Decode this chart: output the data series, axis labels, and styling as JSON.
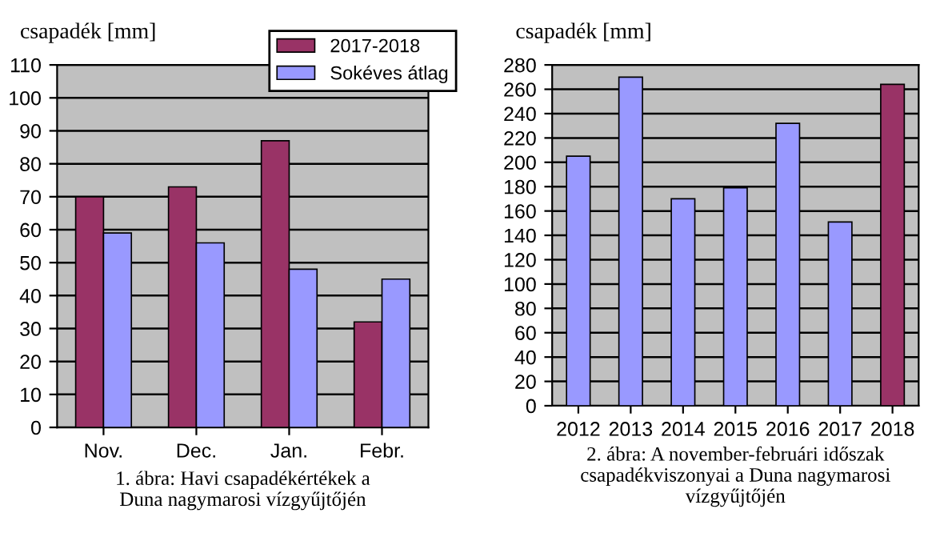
{
  "chart_data": [
    {
      "type": "bar",
      "title": "csapadék [mm]",
      "categories": [
        "Nov.",
        "Dec.",
        "Jan.",
        "Febr."
      ],
      "series": [
        {
          "name": "2017-2018",
          "color": "#993366",
          "values": [
            70,
            73,
            87,
            32
          ]
        },
        {
          "name": "Sokéves átlag",
          "color": "#9999ff",
          "values": [
            59,
            56,
            48,
            45
          ]
        }
      ],
      "ylim": [
        0,
        110
      ],
      "yticks": [
        0,
        10,
        20,
        30,
        40,
        50,
        60,
        70,
        80,
        90,
        100,
        110
      ],
      "grid": "y",
      "legend": "top right",
      "annotations": [
        "1. ábra: Havi csapadékértékek a\nDuna nagymarosi vízgyűjtőjén"
      ]
    },
    {
      "type": "bar",
      "title": "csapadék [mm]",
      "categories": [
        "2012",
        "2013",
        "2014",
        "2015",
        "2016",
        "2017",
        "2018"
      ],
      "values": [
        205,
        270,
        170,
        179,
        232,
        151,
        264
      ],
      "colors": [
        "#9999ff",
        "#9999ff",
        "#9999ff",
        "#9999ff",
        "#9999ff",
        "#9999ff",
        "#993366"
      ],
      "ylim": [
        0,
        280
      ],
      "yticks": [
        0,
        20,
        40,
        60,
        80,
        100,
        120,
        140,
        160,
        180,
        200,
        220,
        240,
        260,
        280
      ],
      "grid": "y",
      "annotations": [
        "2. ábra: A november-februári időszak\ncsapadékviszonyai a Duna nagymarosi\nvízgyűjtőjén"
      ]
    }
  ]
}
